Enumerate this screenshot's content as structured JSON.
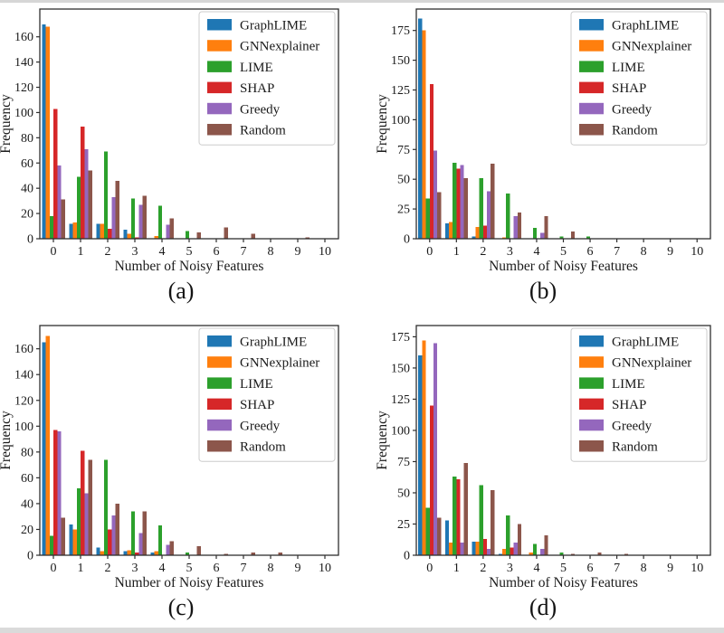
{
  "figure": {
    "xlabel": "Number of Noisy Features",
    "ylabel": "Frequency",
    "legend_entries": [
      "GraphLIME",
      "GNNexplainer",
      "LIME",
      "SHAP",
      "Greedy",
      "Random"
    ],
    "series_colors": {
      "GraphLIME": "#1f77b4",
      "GNNexplainer": "#ff7f0e",
      "LIME": "#2ca02c",
      "SHAP": "#d62728",
      "Greedy": "#9467bd",
      "Random": "#8c564b"
    }
  },
  "chart_data": [
    {
      "type": "bar",
      "caption": "(a)",
      "xlabel": "Number of Noisy Features",
      "ylabel": "Frequency",
      "categories": [
        0,
        1,
        2,
        3,
        4,
        5,
        6,
        7,
        8,
        9,
        10
      ],
      "yticks": [
        0,
        20,
        40,
        60,
        80,
        100,
        120,
        140,
        160
      ],
      "ymax": 182,
      "grid": false,
      "legend_position": "upper right",
      "series": [
        {
          "name": "GraphLIME",
          "color": "#1f77b4",
          "values": [
            170,
            12,
            12,
            7,
            0,
            0,
            0,
            0,
            0,
            0,
            0
          ]
        },
        {
          "name": "GNNexplainer",
          "color": "#ff7f0e",
          "values": [
            168,
            13,
            12,
            4,
            2,
            0,
            0,
            0,
            0,
            0,
            0
          ]
        },
        {
          "name": "LIME",
          "color": "#2ca02c",
          "values": [
            18,
            49,
            69,
            32,
            26,
            6,
            0,
            0,
            0,
            0,
            0
          ]
        },
        {
          "name": "SHAP",
          "color": "#d62728",
          "values": [
            103,
            89,
            8,
            1,
            0,
            0,
            0,
            0,
            0,
            0,
            0
          ]
        },
        {
          "name": "Greedy",
          "color": "#9467bd",
          "values": [
            58,
            71,
            33,
            27,
            11,
            0,
            0,
            0,
            0,
            0,
            0
          ]
        },
        {
          "name": "Random",
          "color": "#8c564b",
          "values": [
            31,
            54,
            46,
            34,
            16,
            5,
            9,
            4,
            0,
            1,
            0
          ]
        }
      ]
    },
    {
      "type": "bar",
      "caption": "(b)",
      "xlabel": "Number of Noisy Features",
      "ylabel": "Frequency",
      "categories": [
        0,
        1,
        2,
        3,
        4,
        5,
        6,
        7,
        8,
        9,
        10
      ],
      "yticks": [
        0,
        25,
        50,
        75,
        100,
        125,
        150,
        175
      ],
      "ymax": 193,
      "grid": false,
      "legend_position": "upper right",
      "series": [
        {
          "name": "GraphLIME",
          "color": "#1f77b4",
          "values": [
            185,
            13,
            2,
            0,
            0,
            0,
            0,
            0,
            0,
            0,
            0
          ]
        },
        {
          "name": "GNNexplainer",
          "color": "#ff7f0e",
          "values": [
            175,
            14,
            10,
            1,
            0,
            0,
            0,
            0,
            0,
            0,
            0
          ]
        },
        {
          "name": "LIME",
          "color": "#2ca02c",
          "values": [
            34,
            64,
            51,
            38,
            9,
            2,
            2,
            0,
            0,
            0,
            0
          ]
        },
        {
          "name": "SHAP",
          "color": "#d62728",
          "values": [
            130,
            59,
            11,
            0,
            0,
            0,
            0,
            0,
            0,
            0,
            0
          ]
        },
        {
          "name": "Greedy",
          "color": "#9467bd",
          "values": [
            74,
            62,
            40,
            19,
            5,
            0,
            0,
            0,
            0,
            0,
            0
          ]
        },
        {
          "name": "Random",
          "color": "#8c564b",
          "values": [
            39,
            51,
            63,
            22,
            19,
            6,
            0,
            0,
            0,
            0,
            0
          ]
        }
      ]
    },
    {
      "type": "bar",
      "caption": "(c)",
      "xlabel": "Number of Noisy Features",
      "ylabel": "Frequency",
      "categories": [
        0,
        1,
        2,
        3,
        4,
        5,
        6,
        7,
        8,
        9,
        10
      ],
      "yticks": [
        0,
        20,
        40,
        60,
        80,
        100,
        120,
        140,
        160
      ],
      "ymax": 178,
      "grid": false,
      "legend_position": "upper right",
      "series": [
        {
          "name": "GraphLIME",
          "color": "#1f77b4",
          "values": [
            165,
            24,
            6,
            3,
            2,
            0,
            0,
            0,
            0,
            0,
            0
          ]
        },
        {
          "name": "GNNexplainer",
          "color": "#ff7f0e",
          "values": [
            170,
            20,
            3,
            4,
            3,
            0,
            0,
            0,
            0,
            0,
            0
          ]
        },
        {
          "name": "LIME",
          "color": "#2ca02c",
          "values": [
            15,
            52,
            74,
            34,
            23,
            2,
            0,
            0,
            0,
            0,
            0
          ]
        },
        {
          "name": "SHAP",
          "color": "#d62728",
          "values": [
            97,
            81,
            20,
            2,
            0,
            0,
            0,
            0,
            0,
            0,
            0
          ]
        },
        {
          "name": "Greedy",
          "color": "#9467bd",
          "values": [
            96,
            48,
            31,
            17,
            8,
            0,
            0,
            0,
            0,
            0,
            0
          ]
        },
        {
          "name": "Random",
          "color": "#8c564b",
          "values": [
            29,
            74,
            40,
            34,
            11,
            7,
            1,
            2,
            2,
            0,
            0
          ]
        }
      ]
    },
    {
      "type": "bar",
      "caption": "(d)",
      "xlabel": "Number of Noisy Features",
      "ylabel": "Frequency",
      "categories": [
        0,
        1,
        2,
        3,
        4,
        5,
        6,
        7,
        8,
        9,
        10
      ],
      "yticks": [
        0,
        25,
        50,
        75,
        100,
        125,
        150,
        175
      ],
      "ymax": 184,
      "grid": false,
      "legend_position": "upper right",
      "series": [
        {
          "name": "GraphLIME",
          "color": "#1f77b4",
          "values": [
            160,
            28,
            11,
            1,
            0,
            0,
            0,
            0,
            0,
            0,
            0
          ]
        },
        {
          "name": "GNNexplainer",
          "color": "#ff7f0e",
          "values": [
            172,
            10,
            11,
            5,
            2,
            0,
            0,
            0,
            0,
            0,
            0
          ]
        },
        {
          "name": "LIME",
          "color": "#2ca02c",
          "values": [
            38,
            63,
            56,
            32,
            9,
            2,
            0,
            0,
            0,
            0,
            0
          ]
        },
        {
          "name": "SHAP",
          "color": "#d62728",
          "values": [
            120,
            61,
            13,
            6,
            0,
            0,
            0,
            0,
            0,
            0,
            0
          ]
        },
        {
          "name": "Greedy",
          "color": "#9467bd",
          "values": [
            170,
            10,
            5,
            10,
            5,
            0,
            0,
            0,
            0,
            0,
            0
          ]
        },
        {
          "name": "Random",
          "color": "#8c564b",
          "values": [
            30,
            74,
            52,
            25,
            16,
            1,
            2,
            1,
            0,
            0,
            0
          ]
        }
      ]
    }
  ]
}
